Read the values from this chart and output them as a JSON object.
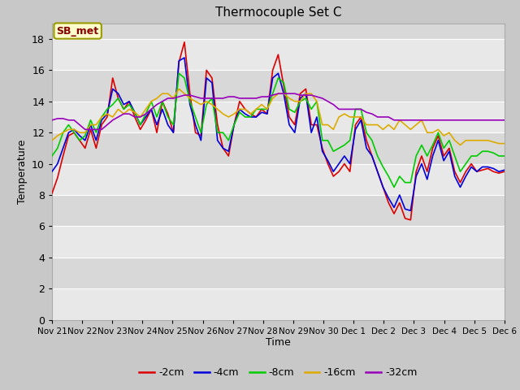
{
  "title": "Thermocouple Set C",
  "xlabel": "Time",
  "ylabel": "Temperature",
  "ylim": [
    0,
    19
  ],
  "yticks": [
    0,
    2,
    4,
    6,
    8,
    10,
    12,
    14,
    16,
    18
  ],
  "colors": {
    "-2cm": "#dd0000",
    "-4cm": "#0000dd",
    "-8cm": "#00cc00",
    "-16cm": "#ddaa00",
    "-32cm": "#9900bb"
  },
  "legend_labels": [
    "-2cm",
    "-4cm",
    "-8cm",
    "-16cm",
    "-32cm"
  ],
  "annotation_text": "SB_met",
  "annotation_bbox_facecolor": "#ffffcc",
  "annotation_bbox_edgecolor": "#999900",
  "x_tick_labels": [
    "Nov 21",
    "Nov 22",
    "Nov 23",
    "Nov 24",
    "Nov 25",
    "Nov 26",
    "Nov 27",
    "Nov 28",
    "Nov 29",
    "Nov 30",
    "Dec 1",
    "Dec 2",
    "Dec 3",
    "Dec 4",
    "Dec 5",
    "Dec 6"
  ],
  "band_colors": [
    "#e8e8e8",
    "#d8d8d8"
  ],
  "fig_facecolor": "#c8c8c8",
  "series": {
    "-2cm": [
      8.1,
      9.1,
      10.5,
      11.8,
      12.0,
      11.5,
      11.0,
      12.2,
      11.0,
      12.5,
      13.0,
      15.5,
      14.2,
      13.5,
      14.0,
      13.0,
      12.2,
      12.8,
      13.5,
      12.0,
      14.0,
      13.2,
      12.0,
      16.5,
      17.8,
      14.5,
      12.0,
      11.8,
      16.0,
      15.5,
      12.5,
      11.0,
      10.5,
      12.5,
      14.0,
      13.5,
      13.2,
      13.0,
      13.5,
      13.2,
      16.0,
      17.0,
      15.0,
      13.0,
      12.5,
      14.5,
      14.8,
      12.5,
      12.5,
      11.0,
      10.0,
      9.2,
      9.5,
      10.0,
      9.5,
      12.5,
      13.0,
      11.5,
      10.5,
      9.5,
      8.5,
      7.5,
      6.8,
      7.5,
      6.5,
      6.4,
      9.5,
      10.5,
      9.5,
      11.0,
      11.8,
      10.5,
      11.0,
      9.5,
      8.8,
      9.5,
      10.0,
      9.5,
      9.6,
      9.7,
      9.5,
      9.4,
      9.5
    ],
    "-4cm": [
      9.5,
      10.0,
      11.0,
      12.0,
      12.2,
      11.8,
      11.5,
      12.5,
      11.5,
      12.8,
      13.2,
      14.8,
      14.5,
      13.8,
      14.0,
      13.3,
      12.5,
      13.0,
      13.5,
      12.5,
      13.5,
      12.5,
      12.0,
      16.6,
      16.8,
      13.8,
      12.5,
      11.5,
      15.5,
      15.2,
      11.5,
      11.0,
      10.8,
      12.5,
      13.5,
      13.2,
      13.0,
      13.0,
      13.3,
      13.2,
      15.5,
      15.8,
      14.5,
      12.5,
      12.0,
      14.2,
      14.5,
      12.0,
      13.0,
      10.8,
      10.2,
      9.5,
      10.0,
      10.5,
      10.0,
      12.2,
      12.8,
      11.0,
      10.5,
      9.5,
      8.5,
      7.8,
      7.2,
      8.0,
      7.1,
      7.0,
      9.2,
      10.0,
      9.0,
      10.5,
      11.5,
      10.2,
      10.8,
      9.2,
      8.5,
      9.2,
      9.8,
      9.5,
      9.8,
      9.8,
      9.7,
      9.5,
      9.6
    ],
    "-8cm": [
      10.5,
      11.0,
      12.0,
      12.5,
      12.0,
      11.5,
      11.8,
      12.8,
      12.0,
      13.0,
      13.5,
      13.8,
      14.2,
      13.5,
      13.8,
      13.3,
      12.5,
      13.2,
      14.0,
      13.0,
      14.0,
      13.0,
      12.5,
      15.8,
      15.5,
      14.0,
      13.0,
      12.0,
      13.8,
      14.2,
      12.0,
      12.0,
      11.5,
      12.5,
      13.3,
      13.0,
      13.0,
      13.5,
      13.5,
      13.5,
      14.5,
      15.5,
      15.2,
      13.5,
      13.3,
      14.0,
      14.2,
      13.5,
      14.0,
      11.5,
      11.5,
      10.8,
      11.0,
      11.2,
      11.5,
      13.5,
      13.5,
      12.0,
      11.5,
      10.5,
      9.8,
      9.2,
      8.5,
      9.2,
      8.8,
      8.8,
      10.5,
      11.2,
      10.5,
      11.2,
      12.0,
      11.0,
      11.5,
      10.5,
      9.5,
      10.0,
      10.5,
      10.5,
      10.8,
      10.8,
      10.7,
      10.5,
      10.5
    ],
    "-16cm": [
      11.5,
      11.8,
      12.0,
      12.2,
      12.2,
      12.0,
      12.0,
      12.5,
      12.5,
      13.0,
      13.2,
      13.0,
      13.5,
      13.2,
      13.5,
      13.3,
      13.0,
      13.5,
      14.0,
      14.2,
      14.5,
      14.5,
      14.2,
      14.8,
      14.5,
      14.2,
      14.0,
      13.8,
      14.0,
      13.8,
      13.5,
      13.2,
      13.0,
      13.2,
      13.5,
      13.5,
      13.2,
      13.5,
      13.8,
      13.5,
      14.2,
      14.5,
      14.5,
      14.2,
      14.0,
      14.0,
      14.5,
      14.5,
      14.0,
      12.5,
      12.5,
      12.2,
      13.0,
      13.2,
      13.0,
      13.0,
      13.0,
      12.5,
      12.5,
      12.5,
      12.2,
      12.5,
      12.2,
      12.8,
      12.5,
      12.2,
      12.5,
      12.8,
      12.0,
      12.0,
      12.2,
      11.8,
      12.0,
      11.5,
      11.2,
      11.5,
      11.5,
      11.5,
      11.5,
      11.5,
      11.4,
      11.3,
      11.3
    ],
    "-32cm": [
      12.8,
      12.9,
      12.9,
      12.8,
      12.8,
      12.5,
      12.2,
      12.2,
      12.2,
      12.2,
      12.5,
      12.8,
      13.0,
      13.2,
      13.2,
      13.0,
      13.0,
      13.2,
      13.5,
      13.8,
      14.0,
      14.2,
      14.2,
      14.3,
      14.4,
      14.4,
      14.3,
      14.2,
      14.2,
      14.2,
      14.2,
      14.2,
      14.3,
      14.3,
      14.2,
      14.2,
      14.2,
      14.2,
      14.3,
      14.3,
      14.4,
      14.5,
      14.5,
      14.5,
      14.5,
      14.4,
      14.4,
      14.4,
      14.3,
      14.2,
      14.0,
      13.8,
      13.5,
      13.5,
      13.5,
      13.5,
      13.5,
      13.3,
      13.2,
      13.0,
      13.0,
      13.0,
      12.8,
      12.8,
      12.8,
      12.8,
      12.8,
      12.8,
      12.8,
      12.8,
      12.8,
      12.8,
      12.8,
      12.8,
      12.8,
      12.8,
      12.8,
      12.8,
      12.8,
      12.8,
      12.8,
      12.8,
      12.8
    ]
  }
}
